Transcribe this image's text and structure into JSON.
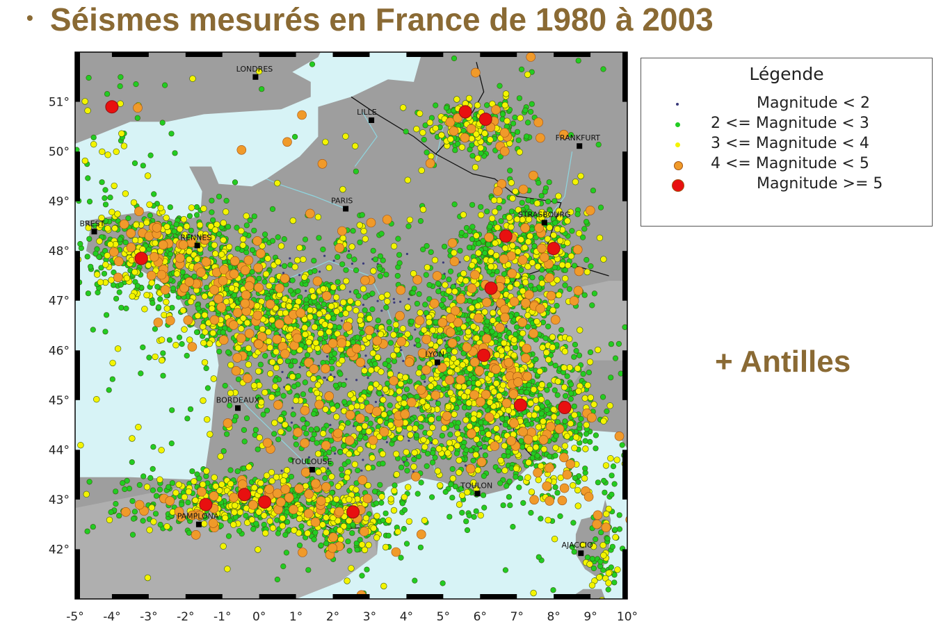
{
  "title": "Séismes mesurés en France de 1980 à 2003",
  "bullet": "•",
  "note": "+ Antilles",
  "legend": {
    "title": "Légende",
    "items": [
      {
        "label": "Magnitude < 2",
        "color": "#3a3a7a",
        "symbol": "tiny-dot"
      },
      {
        "label": "2 <= Magnitude < 3",
        "color": "#22cc22",
        "symbol": "small-dot"
      },
      {
        "label": "3 <= Magnitude < 4",
        "color": "#f4f400",
        "symbol": "small-dot"
      },
      {
        "label": "4 <= Magnitude < 5",
        "color": "#f09a2a",
        "symbol": "medium-dot"
      },
      {
        "label": "Magnitude >= 5",
        "color": "#e81010",
        "symbol": "large-dot"
      }
    ]
  },
  "map": {
    "lon_range": [
      -5,
      10
    ],
    "lat_range": [
      41,
      52
    ],
    "lon_ticks": [
      "-5°",
      "-4°",
      "-3°",
      "-2°",
      "-1°",
      "0°",
      "1°",
      "2°",
      "3°",
      "4°",
      "5°",
      "6°",
      "7°",
      "8°",
      "9°",
      "10°"
    ],
    "lat_ticks": [
      "42°",
      "43°",
      "44°",
      "45°",
      "46°",
      "47°",
      "48°",
      "49°",
      "50°",
      "51°"
    ],
    "colors": {
      "sea": "#d7f3f6",
      "land": "#9e9e9e",
      "land_light": "#bdbdbd",
      "border": "#111111",
      "river": "#8fd6e0"
    },
    "cities": [
      {
        "name": "LONDRES",
        "lon": -0.1,
        "lat": 51.5
      },
      {
        "name": "LILLE",
        "lon": 3.05,
        "lat": 50.63
      },
      {
        "name": "FRANKFURT",
        "lon": 8.7,
        "lat": 50.11
      },
      {
        "name": "PARIS",
        "lon": 2.35,
        "lat": 48.85
      },
      {
        "name": "BREST",
        "lon": -4.48,
        "lat": 48.39
      },
      {
        "name": "RENNES",
        "lon": -1.68,
        "lat": 48.11
      },
      {
        "name": "STRASBOURG",
        "lon": 7.75,
        "lat": 48.57
      },
      {
        "name": "LYON",
        "lon": 4.84,
        "lat": 45.76
      },
      {
        "name": "BORDEAUX",
        "lon": -0.58,
        "lat": 44.84
      },
      {
        "name": "TOULOUSE",
        "lon": 1.44,
        "lat": 43.6
      },
      {
        "name": "TOULON",
        "lon": 5.93,
        "lat": 43.12
      },
      {
        "name": "PAMPLONA",
        "lon": -1.64,
        "lat": 42.5
      },
      {
        "name": "AJACCIO",
        "lon": 8.74,
        "lat": 41.92
      }
    ],
    "major_quakes_m5": [
      {
        "lon": -4.0,
        "lat": 50.9
      },
      {
        "lon": -3.2,
        "lat": 47.85
      },
      {
        "lon": 5.6,
        "lat": 50.8
      },
      {
        "lon": 6.15,
        "lat": 50.65
      },
      {
        "lon": 6.7,
        "lat": 48.3
      },
      {
        "lon": 8.0,
        "lat": 48.05
      },
      {
        "lon": 6.3,
        "lat": 47.25
      },
      {
        "lon": 6.1,
        "lat": 45.9
      },
      {
        "lon": 7.1,
        "lat": 44.9
      },
      {
        "lon": 8.3,
        "lat": 44.85
      },
      {
        "lon": -1.45,
        "lat": 42.9
      },
      {
        "lon": -0.4,
        "lat": 43.1
      },
      {
        "lon": 0.15,
        "lat": 42.95
      },
      {
        "lon": 2.55,
        "lat": 42.75
      }
    ]
  }
}
